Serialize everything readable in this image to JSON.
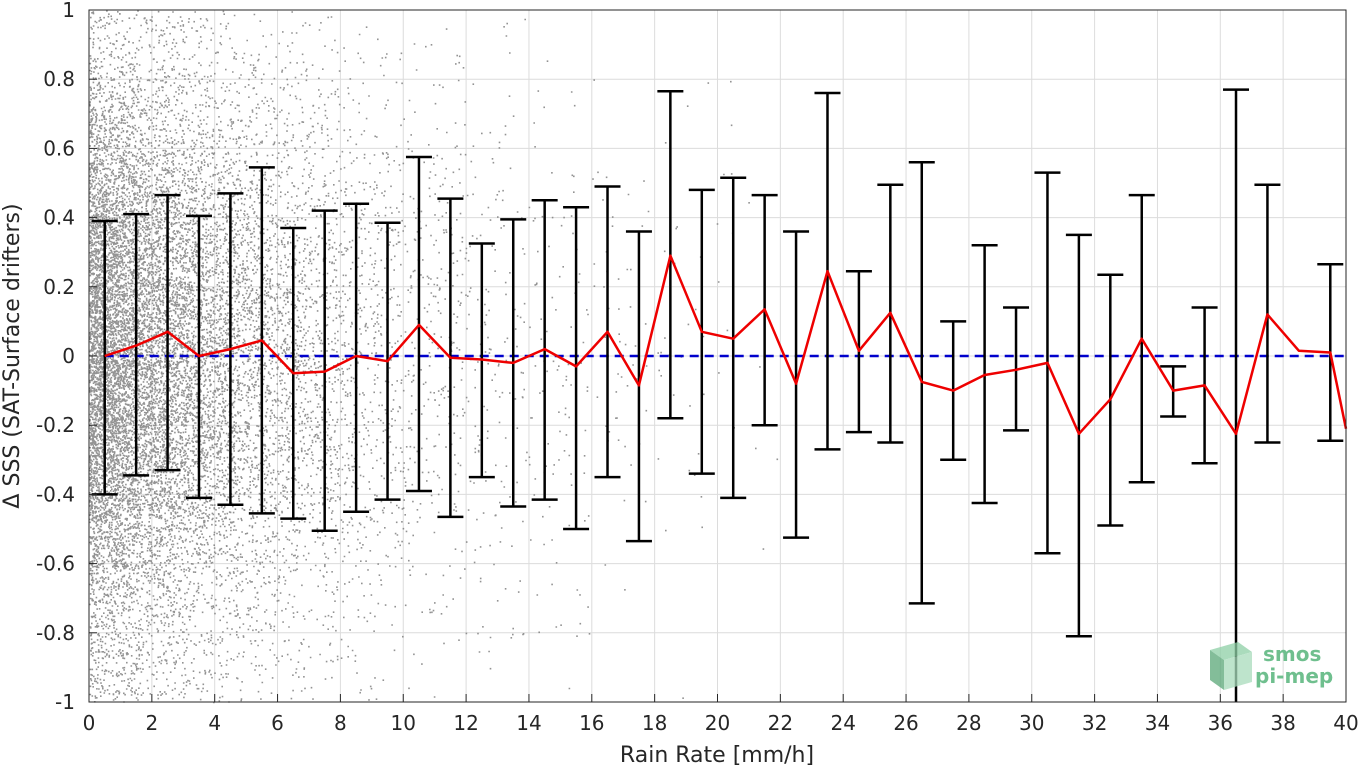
{
  "chart_data": {
    "type": "scatter",
    "title": "",
    "xlabel": "Rain Rate [mm/h]",
    "ylabel": "Δ SSS (SAT-Surface drifters)",
    "xlim": [
      0,
      40
    ],
    "ylim": [
      -1,
      1
    ],
    "xticks": [
      0,
      2,
      4,
      6,
      8,
      10,
      12,
      14,
      16,
      18,
      20,
      22,
      24,
      26,
      28,
      30,
      32,
      34,
      36,
      38,
      40
    ],
    "yticks": [
      -1,
      -0.8,
      -0.6,
      -0.4,
      -0.2,
      0,
      0.2,
      0.4,
      0.6,
      0.8,
      1
    ],
    "ytick_labels": [
      "-1",
      "-0.8",
      "-0.6",
      "-0.4",
      "-0.2",
      "0",
      "0.2",
      "0.4",
      "0.6",
      "0.8",
      "1"
    ],
    "grid": true,
    "series": [
      {
        "kind": "scatter",
        "color": "#808080",
        "description_values": "dense cloud of individual match-up points, densest at low rain rate"
      },
      {
        "kind": "line",
        "style": "dashed",
        "color": "#0000cc",
        "x": [
          0.5,
          40
        ],
        "y": [
          0,
          0
        ]
      },
      {
        "kind": "line",
        "color": "#ee0000",
        "x": [
          0.5,
          1.5,
          2.5,
          3.5,
          4.5,
          5.5,
          6.5,
          7.5,
          8.5,
          9.5,
          10.5,
          11.5,
          12.5,
          13.5,
          14.5,
          15.5,
          16.5,
          17.5,
          18.5,
          19.5,
          20.5,
          21.5,
          22.5,
          23.5,
          24.5,
          25.5,
          26.5,
          27.5,
          28.5,
          29.5,
          30.5,
          31.5,
          32.5,
          33.5,
          34.5,
          35.5,
          36.5,
          37.5,
          38.5,
          39.5,
          40
        ],
        "y": [
          0.0,
          0.03,
          0.07,
          0.0,
          0.02,
          0.045,
          -0.05,
          -0.045,
          0.0,
          -0.015,
          0.09,
          -0.005,
          -0.01,
          -0.02,
          0.02,
          -0.03,
          0.07,
          -0.085,
          0.29,
          0.07,
          0.05,
          0.135,
          -0.08,
          0.245,
          0.015,
          0.125,
          -0.075,
          -0.1,
          -0.055,
          -0.04,
          -0.02,
          -0.225,
          -0.125,
          0.05,
          -0.1,
          -0.085,
          -0.225,
          0.12,
          0.015,
          0.01,
          -0.21
        ]
      },
      {
        "kind": "errorbar",
        "color": "#000000",
        "x": [
          0.5,
          1.5,
          2.5,
          3.5,
          4.5,
          5.5,
          6.5,
          7.5,
          8.5,
          9.5,
          10.5,
          11.5,
          12.5,
          13.5,
          14.5,
          15.5,
          16.5,
          17.5,
          18.5,
          19.5,
          20.5,
          21.5,
          22.5,
          23.5,
          24.5,
          25.5,
          26.5,
          27.5,
          28.5,
          29.5,
          30.5,
          31.5,
          32.5,
          33.5,
          34.5,
          35.5,
          36.5,
          37.5,
          39.5
        ],
        "upper": [
          0.39,
          0.41,
          0.465,
          0.405,
          0.47,
          0.545,
          0.37,
          0.42,
          0.44,
          0.385,
          0.575,
          0.455,
          0.325,
          0.395,
          0.45,
          0.43,
          0.49,
          0.36,
          0.765,
          0.48,
          0.515,
          0.465,
          0.36,
          0.76,
          0.245,
          0.495,
          0.56,
          0.1,
          0.32,
          0.14,
          0.53,
          0.35,
          0.235,
          0.465,
          -0.03,
          0.14,
          0.77,
          0.495,
          0.265
        ],
        "lower": [
          -0.4,
          -0.345,
          -0.33,
          -0.41,
          -0.43,
          -0.455,
          -0.47,
          -0.505,
          -0.45,
          -0.415,
          -0.39,
          -0.465,
          -0.35,
          -0.435,
          -0.415,
          -0.5,
          -0.35,
          -0.535,
          -0.18,
          -0.34,
          -0.41,
          -0.2,
          -0.525,
          -0.27,
          -0.22,
          -0.25,
          -0.715,
          -0.3,
          -0.425,
          -0.215,
          -0.57,
          -0.81,
          -0.49,
          -0.365,
          -0.175,
          -0.31,
          -1.0,
          -0.25,
          -0.245
        ]
      }
    ]
  },
  "logo": {
    "line1": "smos",
    "line2": "pi-mep",
    "color": "#6fbf8e"
  }
}
